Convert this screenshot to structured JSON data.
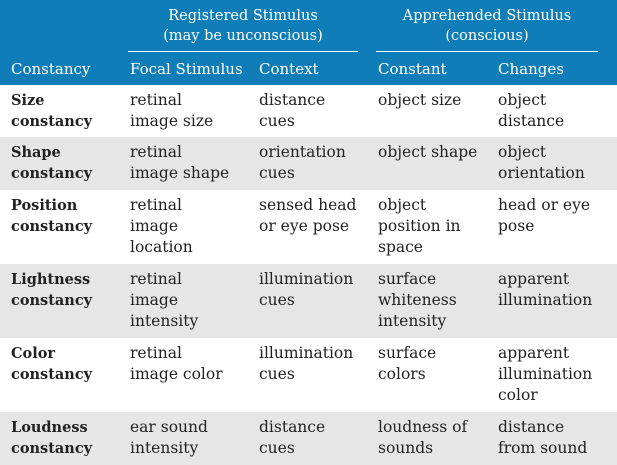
{
  "colors": {
    "header_bg": "#0e7db8",
    "row_alt_bg": "#e6e6e6",
    "row_bg": "#ffffff",
    "text": "#222222"
  },
  "groups": {
    "registered": "Registered Stimulus\n(may be unconscious)",
    "apprehended": "Apprehended Stimulus\n(conscious)"
  },
  "columns": [
    "Constancy",
    "Focal Stimulus",
    "Context",
    "Constant",
    "Changes"
  ],
  "rows": [
    {
      "constancy": "Size\nconstancy",
      "focal": "retinal\nimage size",
      "context": "distance\ncues",
      "constant": "object size",
      "changes": "object\ndistance"
    },
    {
      "constancy": "Shape\nconstancy",
      "focal": "retinal\nimage shape",
      "context": "orientation\ncues",
      "constant": "object shape",
      "changes": "object\norientation"
    },
    {
      "constancy": "Position\nconstancy",
      "focal": "retinal\nimage\nlocation",
      "context": "sensed head\nor eye pose",
      "constant": "object\nposition in\nspace",
      "changes": "head or eye\npose"
    },
    {
      "constancy": "Lightness\nconstancy",
      "focal": "retinal\nimage\nintensity",
      "context": "illumination\ncues",
      "constant": "surface\nwhiteness\nintensity",
      "changes": "apparent\nillumination"
    },
    {
      "constancy": "Color\nconstancy",
      "focal": "retinal\nimage color",
      "context": "illumination\ncues",
      "constant": "surface\ncolors",
      "changes": "apparent\nillumination\ncolor"
    },
    {
      "constancy": "Loudness\nconstancy",
      "focal": "ear sound\nintensity",
      "context": "distance\ncues",
      "constant": "loudness of\nsounds",
      "changes": "distance\nfrom sound"
    }
  ]
}
